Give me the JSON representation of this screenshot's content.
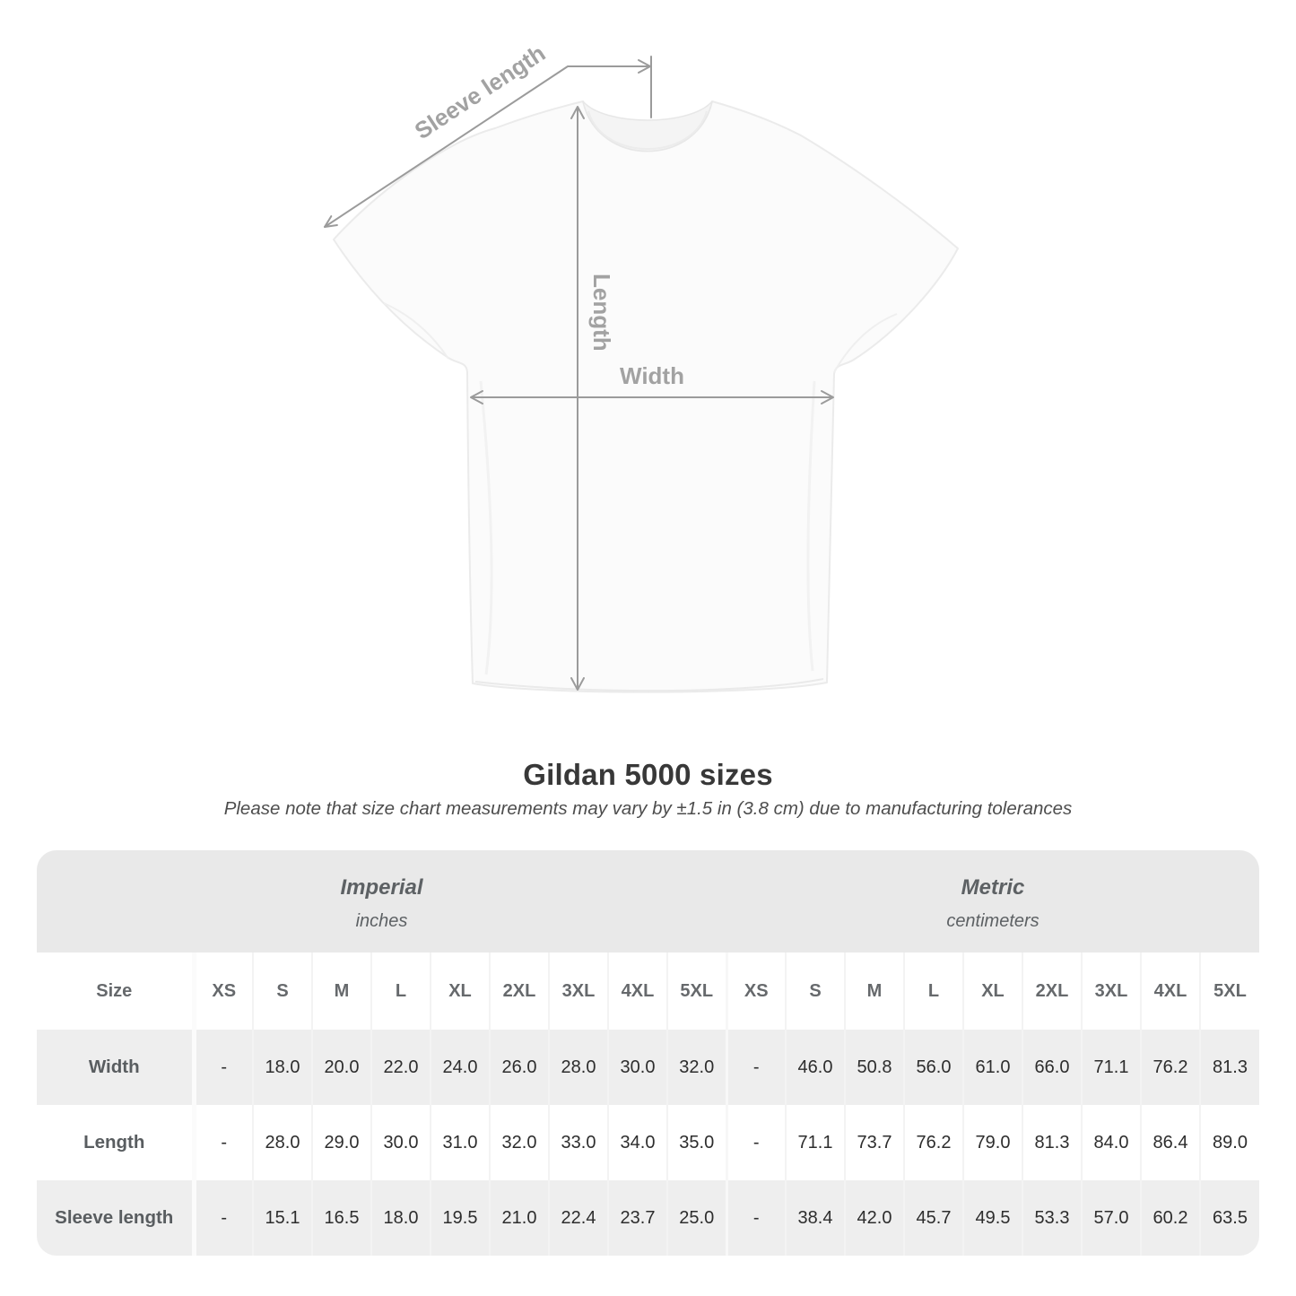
{
  "title": "Gildan 5000 sizes",
  "subtitle": "Please note that size chart measurements may vary by ±1.5 in (3.8 cm) due to manufacturing tolerances",
  "shirt": {
    "labels": {
      "sleeve_length": "Sleeve length",
      "length": "Length",
      "width": "Width"
    }
  },
  "colors": {
    "measure_line": "#9b9b9b",
    "measure_label": "#a2a2a2",
    "band_background": "#e9e9e9",
    "row_alt_background": "#eeeeee",
    "label_text": "#595d60",
    "value_text": "#2d2d2d"
  },
  "size_table": {
    "unit_groups": [
      {
        "label": "Imperial",
        "sublabel": "inches"
      },
      {
        "label": "Metric",
        "sublabel": "centimeters"
      }
    ],
    "size_column_header": "Size",
    "sizes": [
      "XS",
      "S",
      "M",
      "L",
      "XL",
      "2XL",
      "3XL",
      "4XL",
      "5XL"
    ],
    "rows": [
      {
        "label": "Width",
        "imperial": [
          "-",
          "18.0",
          "20.0",
          "22.0",
          "24.0",
          "26.0",
          "28.0",
          "30.0",
          "32.0"
        ],
        "metric": [
          "-",
          "46.0",
          "50.8",
          "56.0",
          "61.0",
          "66.0",
          "71.1",
          "76.2",
          "81.3"
        ]
      },
      {
        "label": "Length",
        "imperial": [
          "-",
          "28.0",
          "29.0",
          "30.0",
          "31.0",
          "32.0",
          "33.0",
          "34.0",
          "35.0"
        ],
        "metric": [
          "-",
          "71.1",
          "73.7",
          "76.2",
          "79.0",
          "81.3",
          "84.0",
          "86.4",
          "89.0"
        ]
      },
      {
        "label": "Sleeve length",
        "imperial": [
          "-",
          "15.1",
          "16.5",
          "18.0",
          "19.5",
          "21.0",
          "22.4",
          "23.7",
          "25.0"
        ],
        "metric": [
          "-",
          "38.4",
          "42.0",
          "45.7",
          "49.5",
          "53.3",
          "57.0",
          "60.2",
          "63.5"
        ]
      }
    ]
  }
}
